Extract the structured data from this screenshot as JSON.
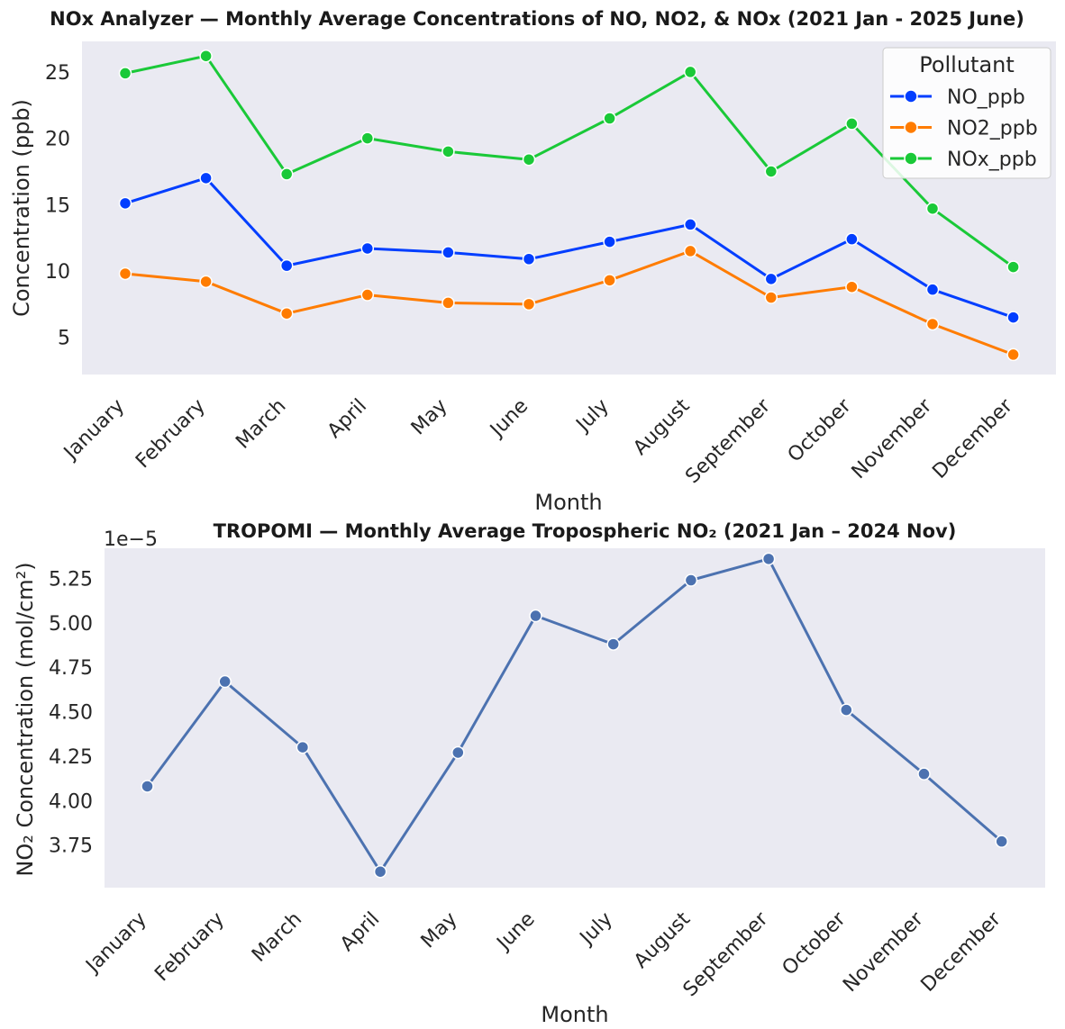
{
  "chart_data": [
    {
      "type": "line",
      "title": "NOx Analyzer — Monthly Average Concentrations of NO, NO2, & NOx (2021 Jan - 2025 June)",
      "xlabel": "Month",
      "ylabel": "Concentration (ppb)",
      "categories": [
        "January",
        "February",
        "March",
        "April",
        "May",
        "June",
        "July",
        "August",
        "September",
        "October",
        "November",
        "December"
      ],
      "ylim": [
        2.2,
        27.3
      ],
      "yticks": [
        5,
        10,
        15,
        20,
        25
      ],
      "grid": false,
      "legend": {
        "title": "Pollutant",
        "placement": "top-right"
      },
      "series": [
        {
          "name": "NO_ppb",
          "color": "#023eff",
          "values": [
            15.1,
            17.0,
            10.4,
            11.7,
            11.4,
            10.9,
            12.2,
            13.5,
            9.4,
            12.4,
            8.6,
            6.5
          ]
        },
        {
          "name": "NO2_ppb",
          "color": "#ff7c00",
          "values": [
            9.8,
            9.2,
            6.8,
            8.2,
            7.6,
            7.5,
            9.3,
            11.5,
            8.0,
            8.8,
            6.0,
            3.7
          ]
        },
        {
          "name": "NOx_ppb",
          "color": "#1ac938",
          "values": [
            24.9,
            26.2,
            17.3,
            20.0,
            19.0,
            18.4,
            21.5,
            25.0,
            17.5,
            21.1,
            14.7,
            10.3
          ]
        }
      ]
    },
    {
      "type": "line",
      "title": "TROPOMI — Monthly Average Tropospheric NO₂ (2021 Jan – 2024 Nov)",
      "xlabel": "Month",
      "ylabel": "NO₂ Concentration (mol/cm²)",
      "offset_text": "1e−5",
      "categories": [
        "January",
        "February",
        "March",
        "April",
        "May",
        "June",
        "July",
        "August",
        "September",
        "October",
        "November",
        "December"
      ],
      "ylim": [
        3.51,
        5.42
      ],
      "yticks": [
        3.75,
        4.0,
        4.25,
        4.5,
        4.75,
        5.0,
        5.25
      ],
      "ytick_labels": [
        "3.75",
        "4.00",
        "4.25",
        "4.50",
        "4.75",
        "5.00",
        "5.25"
      ],
      "grid": false,
      "series": [
        {
          "color": "#4c72b0",
          "values": [
            4.08,
            4.67,
            4.3,
            3.6,
            4.27,
            5.04,
            4.88,
            5.24,
            5.36,
            4.51,
            4.15,
            3.77
          ]
        }
      ]
    }
  ]
}
